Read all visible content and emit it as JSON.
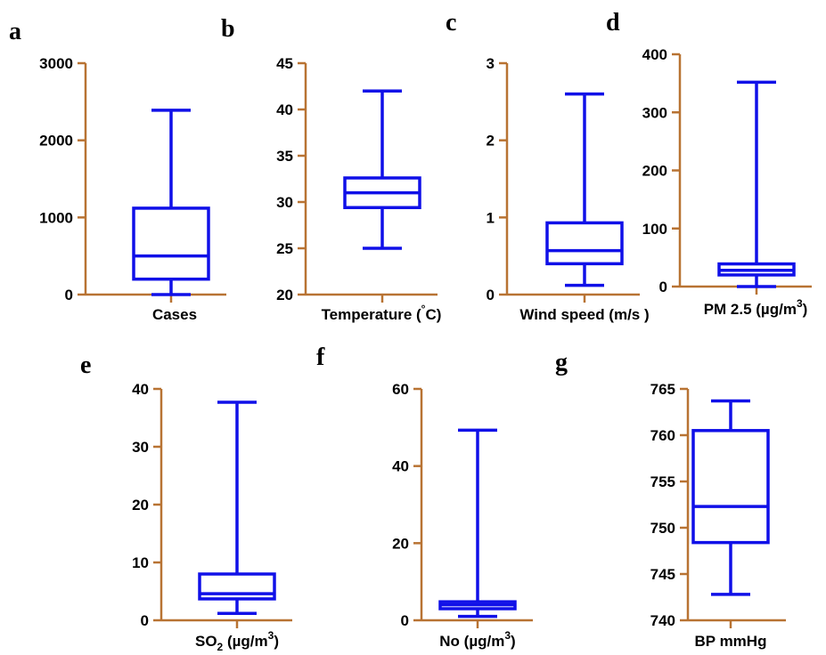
{
  "colors": {
    "axis": "#b87333",
    "box": "#1010e8",
    "text": "#000000"
  },
  "chart_data": [
    {
      "panel": "a",
      "type": "box",
      "xlabel": "Cases",
      "ylim": [
        0,
        3000
      ],
      "ticks": [
        0,
        1000,
        2000,
        3000
      ],
      "tick_labels": [
        "0",
        "1000",
        "2000",
        "3000"
      ],
      "box": {
        "min": 0,
        "q1": 200,
        "median": 500,
        "q3": 1120,
        "max": 2390
      }
    },
    {
      "panel": "b",
      "type": "box",
      "xlabel": "Temperature (",
      "xlabel_sup": "°",
      "xlabel_tail": "C)",
      "ylim": [
        20,
        45
      ],
      "ticks": [
        20,
        25,
        30,
        35,
        40,
        45
      ],
      "tick_labels": [
        "20",
        "25",
        "30",
        "35",
        "40",
        "45"
      ],
      "box": {
        "min": 25,
        "q1": 29.4,
        "median": 31,
        "q3": 32.6,
        "max": 42
      }
    },
    {
      "panel": "c",
      "type": "box",
      "xlabel": "Wind speed (m/s )",
      "ylim": [
        0,
        3
      ],
      "ticks": [
        0,
        1,
        2,
        3
      ],
      "tick_labels": [
        "0",
        "1",
        "2",
        "3"
      ],
      "box": {
        "min": 0.12,
        "q1": 0.4,
        "median": 0.57,
        "q3": 0.93,
        "max": 2.6
      }
    },
    {
      "panel": "d",
      "type": "box",
      "xlabel": "PM 2.5 (µg/m",
      "xlabel_sup": "3",
      "xlabel_tail": ")",
      "ylim": [
        0,
        400
      ],
      "ticks": [
        0,
        100,
        200,
        300,
        400
      ],
      "tick_labels": [
        "0",
        "100",
        "200",
        "300",
        "400"
      ],
      "box": {
        "min": 0,
        "q1": 20,
        "median": 28,
        "q3": 39,
        "max": 352
      }
    },
    {
      "panel": "e",
      "type": "box",
      "xlabel": "SO",
      "xlabel_sub": "2",
      "xlabel_tail": " (µg/m",
      "xlabel_sup": "3",
      "xlabel_tail2": ")",
      "ylim": [
        0,
        40
      ],
      "ticks": [
        0,
        10,
        20,
        30,
        40
      ],
      "tick_labels": [
        "0",
        "10",
        "20",
        "30",
        "40"
      ],
      "box": {
        "min": 1.2,
        "q1": 3.7,
        "median": 4.6,
        "q3": 8.0,
        "max": 37.7
      }
    },
    {
      "panel": "f",
      "type": "box",
      "xlabel": "No (µg/m",
      "xlabel_sup": "3",
      "xlabel_tail": ")",
      "ylim": [
        0,
        60
      ],
      "ticks": [
        0,
        20,
        40,
        60
      ],
      "tick_labels": [
        "0",
        "20",
        "40",
        "60"
      ],
      "box": {
        "min": 1.0,
        "q1": 3.0,
        "median": 4.0,
        "q3": 4.8,
        "max": 49.3
      }
    },
    {
      "panel": "g",
      "type": "box",
      "xlabel": "BP mmHg",
      "ylim": [
        740,
        765
      ],
      "ticks": [
        740,
        745,
        750,
        755,
        760,
        765
      ],
      "tick_labels": [
        "740",
        "745",
        "750",
        "755",
        "760",
        "765"
      ],
      "box": {
        "min": 742.8,
        "q1": 748.4,
        "median": 752.3,
        "q3": 760.5,
        "max": 763.7
      }
    }
  ]
}
